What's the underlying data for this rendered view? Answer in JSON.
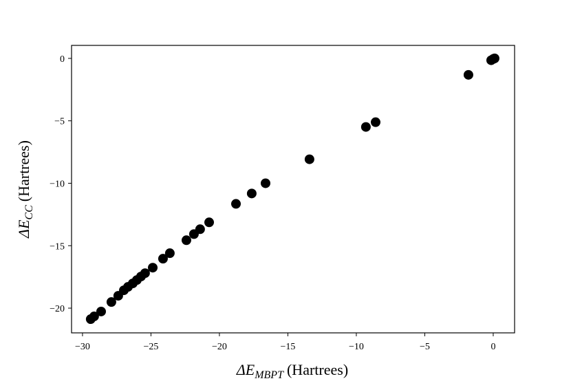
{
  "chart_data": {
    "type": "scatter",
    "xlabel": {
      "symbol": "ΔE",
      "subscript": "MBPT",
      "unit": "(Hartrees)"
    },
    "ylabel": {
      "symbol": "ΔE",
      "subscript": "CC",
      "unit": "(Hartrees)"
    },
    "color": "#000000",
    "x": [
      0,
      0.1,
      -0.15,
      -1.81,
      -8.59,
      -9.3,
      -13.42,
      -16.63,
      -17.64,
      -18.79,
      -20.75,
      -21.41,
      -21.86,
      -22.41,
      -23.62,
      -24.12,
      -24.87,
      -25.43,
      -25.73,
      -26.03,
      -26.33,
      -26.68,
      -26.98,
      -27.39,
      -27.89,
      -28.64,
      -29.15,
      -29.4
    ],
    "y": [
      -0.05,
      0,
      -0.15,
      -1.32,
      -5.11,
      -5.49,
      -8.08,
      -10.0,
      -10.82,
      -11.65,
      -13.13,
      -13.68,
      -14.07,
      -14.56,
      -15.6,
      -16.04,
      -16.76,
      -17.2,
      -17.47,
      -17.75,
      -18.02,
      -18.3,
      -18.57,
      -19.01,
      -19.51,
      -20.27,
      -20.66,
      -20.88
    ],
    "xlim": [
      -30.8,
      1.56
    ],
    "ylim": [
      -21.98,
      1.04
    ],
    "xticks": [
      {
        "value": -30,
        "label": "−30"
      },
      {
        "value": -25,
        "label": "−25"
      },
      {
        "value": -20,
        "label": "−20"
      },
      {
        "value": -15,
        "label": "−15"
      },
      {
        "value": -10,
        "label": "−10"
      },
      {
        "value": -5,
        "label": "−5"
      },
      0
    ],
    "yticks": [
      {
        "value": -20,
        "label": "−20"
      },
      {
        "value": -15,
        "label": "−15"
      },
      {
        "value": -10,
        "label": "−10"
      },
      {
        "value": -5,
        "label": "−5"
      },
      0
    ]
  }
}
